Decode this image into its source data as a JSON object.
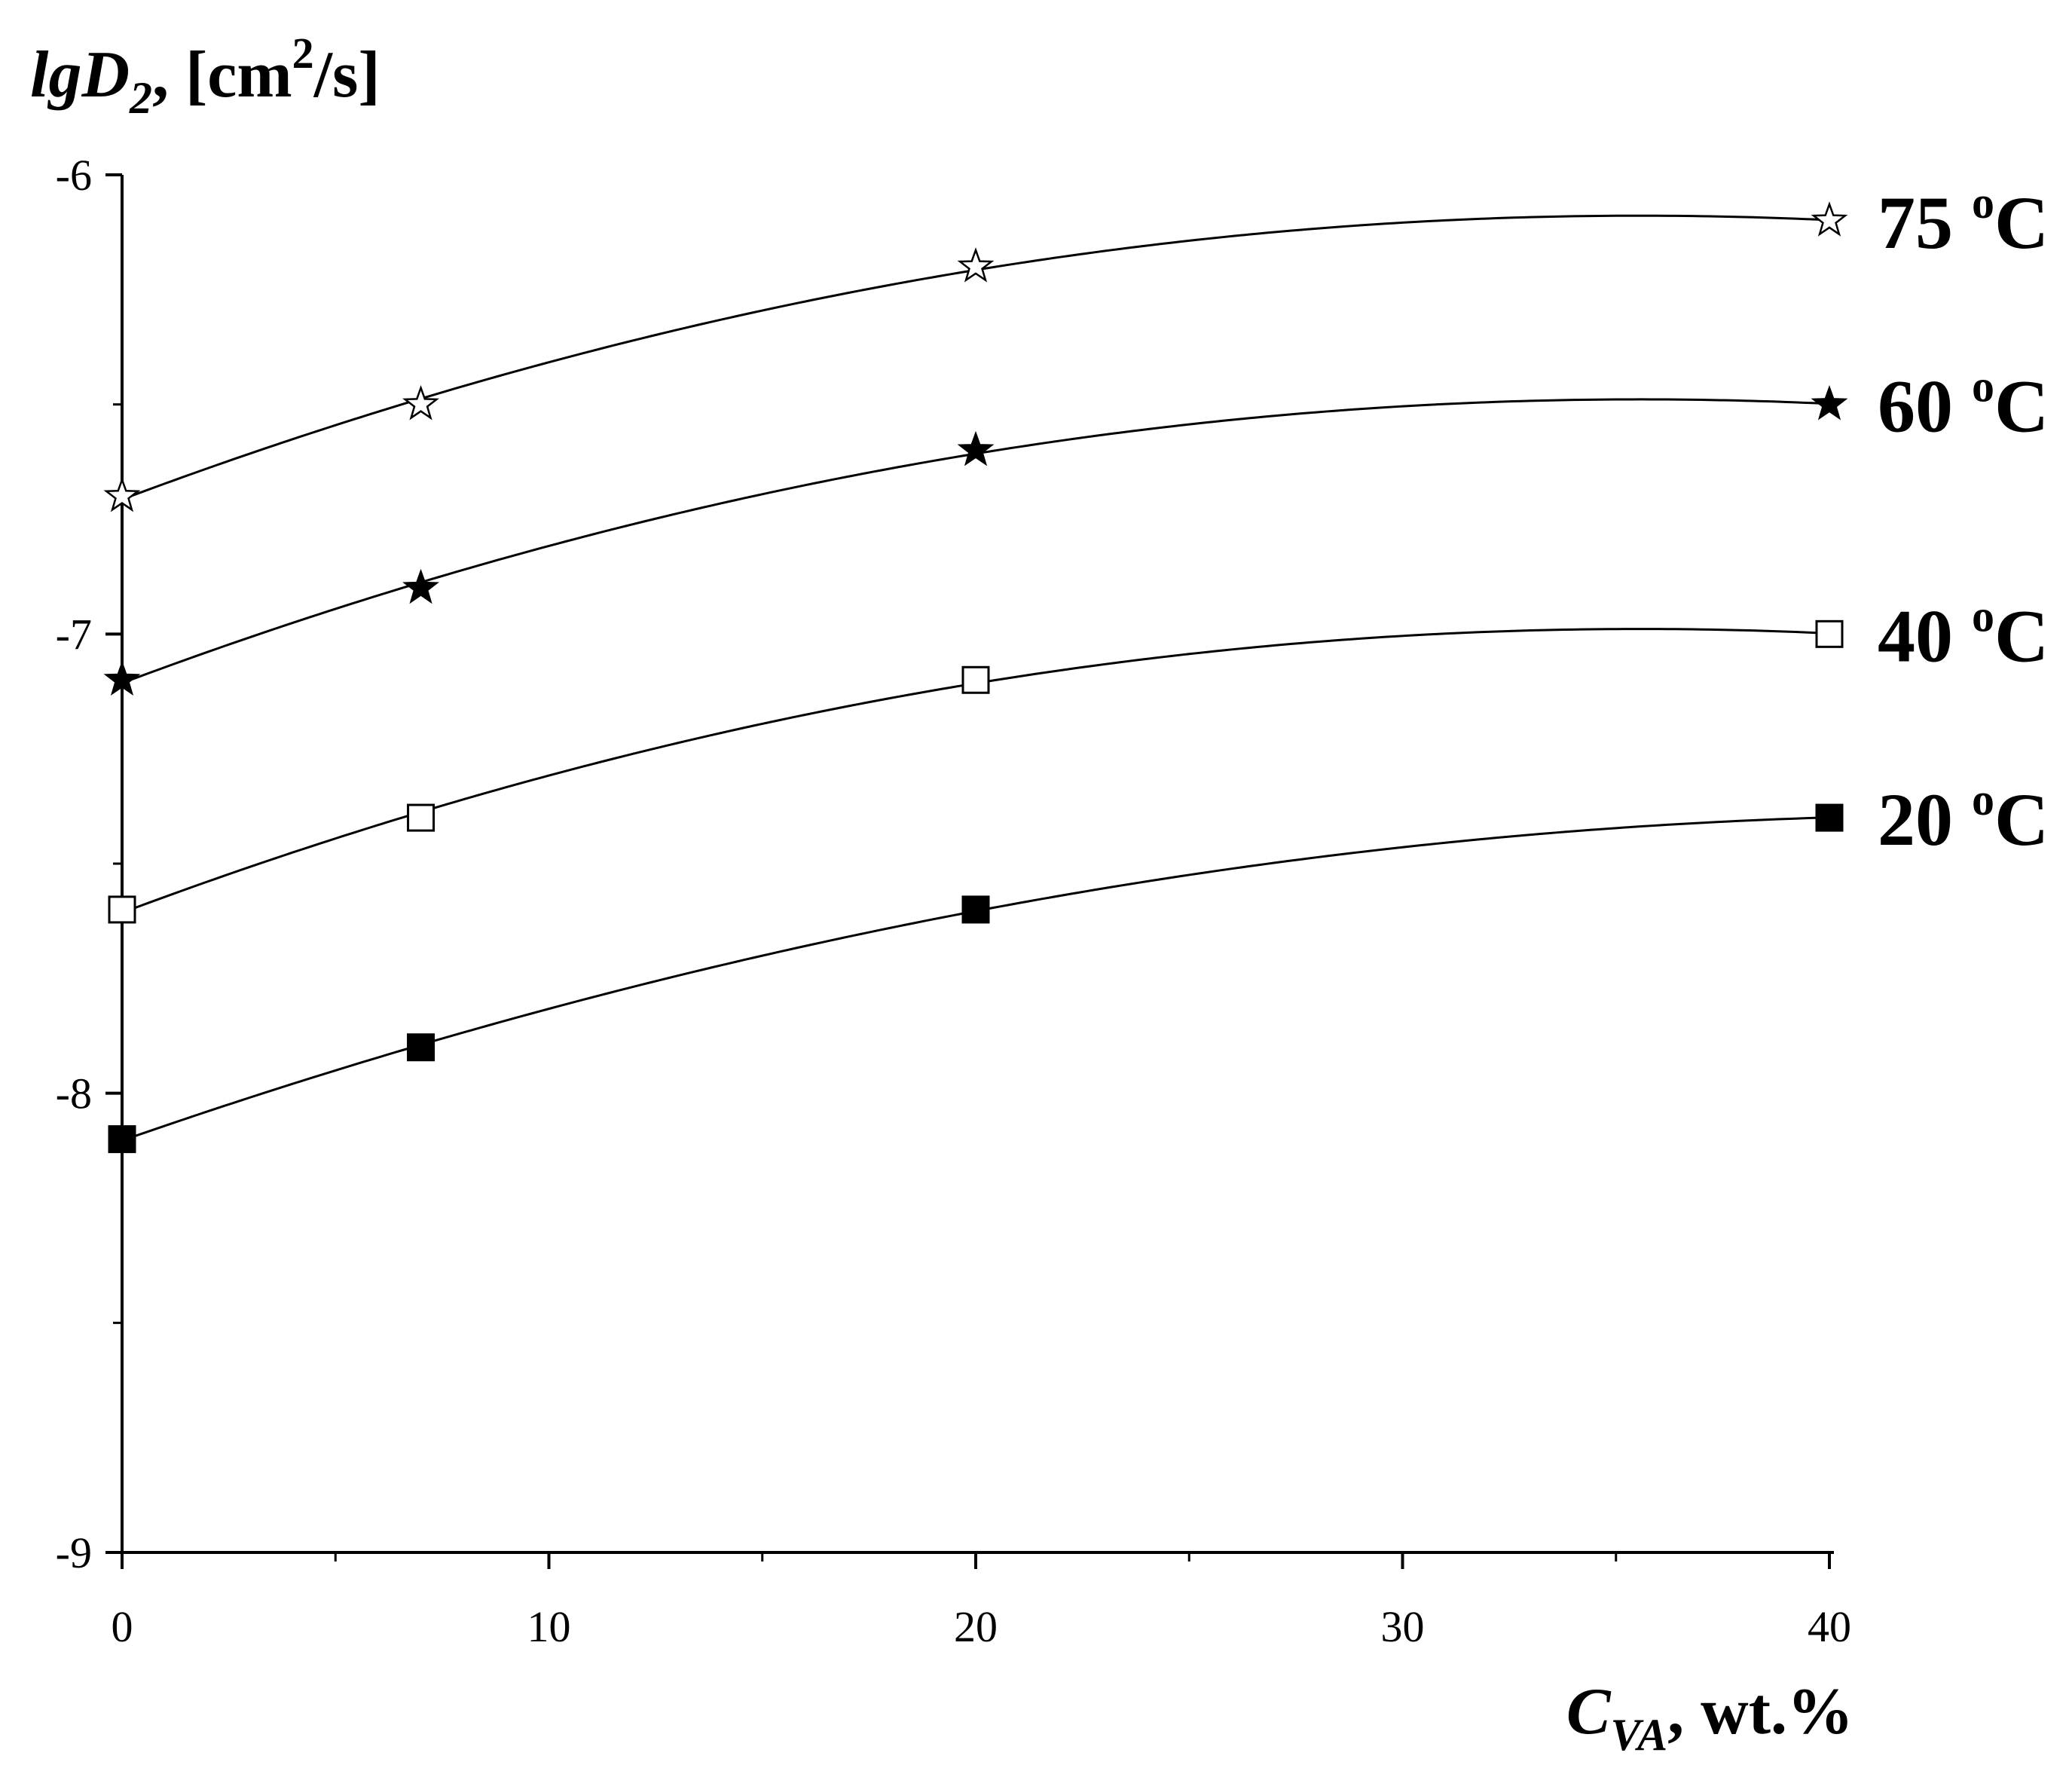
{
  "chart_data": {
    "type": "line",
    "title": "",
    "ylabel": {
      "main": "lgD",
      "sub": "2",
      "units_pre": ", [cm",
      "units_sup": "2",
      "units_post": "/s]"
    },
    "xlabel": {
      "main": "C",
      "sub": "VA",
      "units": ", wt.%"
    },
    "xlim": [
      0,
      40
    ],
    "ylim": [
      -9,
      -6
    ],
    "xticks": [
      0,
      10,
      20,
      30,
      40
    ],
    "yticks": [
      -9,
      -8,
      -7,
      -6
    ],
    "xtick_labels": [
      "0",
      "10",
      "20",
      "30",
      "40"
    ],
    "ytick_labels": [
      "-9",
      "-8",
      "-7",
      "-6"
    ],
    "degree_symbol": "o",
    "series": [
      {
        "name": "20 °C",
        "temp": "20 ",
        "unit": "C",
        "marker": "square-filled",
        "x": [
          0,
          7,
          20,
          40
        ],
        "y": [
          -8.1,
          -7.9,
          -7.6,
          -7.4
        ]
      },
      {
        "name": "40 °C",
        "temp": "40 ",
        "unit": "C",
        "marker": "square-open",
        "x": [
          0,
          7,
          20,
          40
        ],
        "y": [
          -7.6,
          -7.4,
          -7.1,
          -7.0
        ]
      },
      {
        "name": "60 °C",
        "temp": "60 ",
        "unit": "C",
        "marker": "star-filled",
        "x": [
          0,
          7,
          20,
          40
        ],
        "y": [
          -7.1,
          -6.9,
          -6.6,
          -6.5
        ]
      },
      {
        "name": "75 °C",
        "temp": "75 ",
        "unit": "C",
        "marker": "star-open",
        "x": [
          0,
          7,
          20,
          40
        ],
        "y": [
          -6.7,
          -6.5,
          -6.2,
          -6.1
        ]
      }
    ]
  }
}
